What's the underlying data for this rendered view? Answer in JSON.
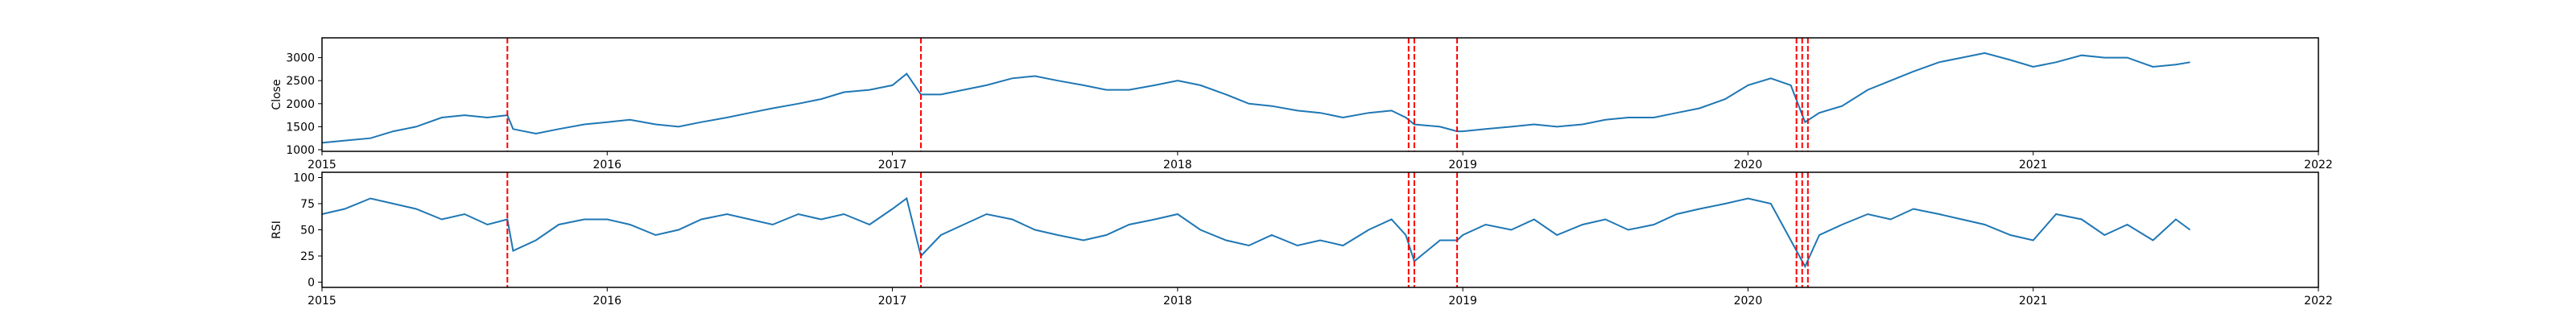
{
  "chart_data": [
    {
      "type": "line",
      "ylabel": "Close",
      "color": "#1f77b4",
      "vline_color": "#ff0000",
      "x": [
        2015,
        2015.08,
        2015.17,
        2015.25,
        2015.33,
        2015.42,
        2015.5,
        2015.58,
        2015.65,
        2015.67,
        2015.75,
        2015.83,
        2015.92,
        2016,
        2016.08,
        2016.17,
        2016.25,
        2016.33,
        2016.42,
        2016.5,
        2016.58,
        2016.67,
        2016.75,
        2016.83,
        2016.92,
        2017,
        2017.05,
        2017.1,
        2017.17,
        2017.25,
        2017.33,
        2017.42,
        2017.5,
        2017.58,
        2017.67,
        2017.75,
        2017.83,
        2017.92,
        2018,
        2018.08,
        2018.17,
        2018.25,
        2018.33,
        2018.42,
        2018.5,
        2018.58,
        2018.67,
        2018.75,
        2018.8,
        2018.83,
        2018.92,
        2018.98,
        2019,
        2019.08,
        2019.17,
        2019.25,
        2019.33,
        2019.42,
        2019.5,
        2019.58,
        2019.67,
        2019.75,
        2019.83,
        2019.92,
        2020,
        2020.08,
        2020.15,
        2020.2,
        2020.25,
        2020.33,
        2020.42,
        2020.5,
        2020.58,
        2020.67,
        2020.75,
        2020.83,
        2020.92,
        2021,
        2021.08,
        2021.17,
        2021.25,
        2021.33,
        2021.42,
        2021.5,
        2021.55
      ],
      "values": [
        1150,
        1200,
        1250,
        1400,
        1500,
        1700,
        1750,
        1700,
        1750,
        1450,
        1350,
        1450,
        1550,
        1600,
        1650,
        1550,
        1500,
        1600,
        1700,
        1800,
        1900,
        2000,
        2100,
        2250,
        2300,
        2400,
        2650,
        2200,
        2200,
        2300,
        2400,
        2550,
        2600,
        2500,
        2400,
        2300,
        2300,
        2400,
        2500,
        2400,
        2200,
        2000,
        1950,
        1850,
        1800,
        1700,
        1800,
        1850,
        1700,
        1550,
        1500,
        1400,
        1400,
        1450,
        1500,
        1550,
        1500,
        1550,
        1650,
        1700,
        1700,
        1800,
        1900,
        2100,
        2400,
        2550,
        2400,
        1600,
        1800,
        1950,
        2300,
        2500,
        2700,
        2900,
        3000,
        3100,
        2950,
        2800,
        2900,
        3050,
        3000,
        3000,
        2800,
        2850,
        2900
      ],
      "xlim": [
        2015,
        2022
      ],
      "xticks": [
        2015,
        2016,
        2017,
        2018,
        2019,
        2020,
        2021,
        2022
      ],
      "ylim": [
        965,
        3430
      ],
      "yticks": [
        1000,
        1500,
        2000,
        2500,
        3000
      ],
      "vlines": [
        2015.65,
        2017.1,
        2018.81,
        2018.83,
        2018.98,
        2020.17,
        2020.19,
        2020.21
      ]
    },
    {
      "type": "line",
      "ylabel": "RSI",
      "color": "#1f77b4",
      "vline_color": "#ff0000",
      "x": [
        2015,
        2015.08,
        2015.17,
        2015.25,
        2015.33,
        2015.42,
        2015.5,
        2015.58,
        2015.65,
        2015.67,
        2015.75,
        2015.83,
        2015.92,
        2016,
        2016.08,
        2016.17,
        2016.25,
        2016.33,
        2016.42,
        2016.5,
        2016.58,
        2016.67,
        2016.75,
        2016.83,
        2016.92,
        2017,
        2017.05,
        2017.1,
        2017.17,
        2017.25,
        2017.33,
        2017.42,
        2017.5,
        2017.58,
        2017.67,
        2017.75,
        2017.83,
        2017.92,
        2018,
        2018.08,
        2018.17,
        2018.25,
        2018.33,
        2018.42,
        2018.5,
        2018.58,
        2018.67,
        2018.75,
        2018.8,
        2018.83,
        2018.92,
        2018.98,
        2019,
        2019.08,
        2019.17,
        2019.25,
        2019.33,
        2019.42,
        2019.5,
        2019.58,
        2019.67,
        2019.75,
        2019.83,
        2019.92,
        2020,
        2020.08,
        2020.15,
        2020.2,
        2020.25,
        2020.33,
        2020.42,
        2020.5,
        2020.58,
        2020.67,
        2020.75,
        2020.83,
        2020.92,
        2021,
        2021.08,
        2021.17,
        2021.25,
        2021.33,
        2021.42,
        2021.5,
        2021.55
      ],
      "values": [
        65,
        70,
        80,
        75,
        70,
        60,
        65,
        55,
        60,
        30,
        40,
        55,
        60,
        60,
        55,
        45,
        50,
        60,
        65,
        60,
        55,
        65,
        60,
        65,
        55,
        70,
        80,
        25,
        45,
        55,
        65,
        60,
        50,
        45,
        40,
        45,
        55,
        60,
        65,
        50,
        40,
        35,
        45,
        35,
        40,
        35,
        50,
        60,
        45,
        20,
        40,
        40,
        45,
        55,
        50,
        60,
        45,
        55,
        60,
        50,
        55,
        65,
        70,
        75,
        80,
        75,
        40,
        15,
        45,
        55,
        65,
        60,
        70,
        65,
        60,
        55,
        45,
        40,
        65,
        60,
        45,
        55,
        40,
        60,
        50
      ],
      "xlim": [
        2015,
        2022
      ],
      "xticks": [
        2015,
        2016,
        2017,
        2018,
        2019,
        2020,
        2021,
        2022
      ],
      "ylim": [
        -5,
        105
      ],
      "yticks": [
        0,
        25,
        50,
        75,
        100
      ],
      "vlines": [
        2015.65,
        2017.1,
        2018.81,
        2018.83,
        2018.98,
        2020.17,
        2020.19,
        2020.21
      ]
    }
  ]
}
